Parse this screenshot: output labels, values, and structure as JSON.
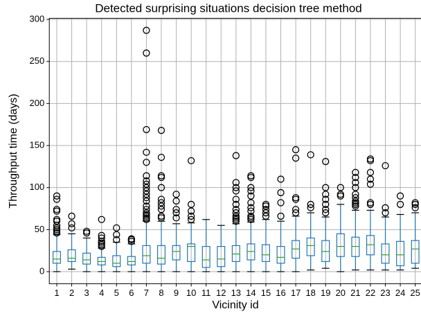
{
  "chart_data": {
    "type": "boxplot",
    "title": "Detected surprising situations decision tree method",
    "xlabel": "Vicinity id",
    "ylabel": "Throughput time (days)",
    "categories": [
      "1",
      "2",
      "3",
      "4",
      "5",
      "6",
      "7",
      "8",
      "9",
      "10",
      "11",
      "12",
      "13",
      "14",
      "15",
      "16",
      "17",
      "18",
      "19",
      "20",
      "21",
      "22",
      "23",
      "24",
      "25"
    ],
    "box_color": "#1f77b4",
    "median_color": "#2ca02c",
    "flier_color": "#000000",
    "grid": true,
    "ylim": [
      -14.35,
      301.35
    ],
    "yticks": [
      0,
      50,
      100,
      150,
      200,
      250,
      300
    ],
    "boxes": [
      {
        "whislo": 0,
        "q1": 10,
        "med": 15,
        "q3": 24,
        "whishi": 44,
        "fliers": [
          46,
          48,
          50,
          52,
          55,
          60,
          62,
          72,
          74,
          86,
          90
        ]
      },
      {
        "whislo": 3,
        "q1": 12,
        "med": 16,
        "q3": 26,
        "whishi": 45,
        "fliers": [
          52,
          57,
          66
        ]
      },
      {
        "whislo": 0,
        "q1": 9,
        "med": 14,
        "q3": 22,
        "whishi": 40,
        "fliers": [
          46,
          48
        ]
      },
      {
        "whislo": 0,
        "q1": 8,
        "med": 12,
        "q3": 17,
        "whishi": 28,
        "fliers": [
          30,
          32,
          34,
          36,
          40,
          43,
          62
        ]
      },
      {
        "whislo": 0,
        "q1": 6,
        "med": 10,
        "q3": 19,
        "whishi": 35,
        "fliers": [
          38,
          44,
          52
        ]
      },
      {
        "whislo": 0,
        "q1": 8,
        "med": 12,
        "q3": 18,
        "whishi": 33,
        "fliers": [
          36,
          38,
          39
        ]
      },
      {
        "whislo": 0,
        "q1": 10,
        "med": 19,
        "q3": 31,
        "whishi": 60,
        "fliers": [
          62,
          64,
          66,
          68,
          70,
          74,
          78,
          84,
          88,
          92,
          96,
          100,
          104,
          108,
          114,
          130,
          142,
          169,
          260,
          287
        ]
      },
      {
        "whislo": 0,
        "q1": 9,
        "med": 16,
        "q3": 31,
        "whishi": 60,
        "fliers": [
          64,
          66,
          74,
          78,
          82,
          86,
          100,
          112,
          114,
          136,
          168
        ]
      },
      {
        "whislo": 0,
        "q1": 14,
        "med": 24,
        "q3": 31,
        "whishi": 57,
        "fliers": [
          64,
          70,
          74,
          84,
          92
        ]
      },
      {
        "whislo": 0,
        "q1": 12,
        "med": 30,
        "q3": 33,
        "whishi": 58,
        "fliers": [
          62,
          66,
          72,
          80,
          132
        ]
      },
      {
        "whislo": 0,
        "q1": 5,
        "med": 14,
        "q3": 30,
        "whishi": 62,
        "fliers": []
      },
      {
        "whislo": 0,
        "q1": 6,
        "med": 15,
        "q3": 30,
        "whishi": 55,
        "fliers": []
      },
      {
        "whislo": 0,
        "q1": 12,
        "med": 21,
        "q3": 31,
        "whishi": 57,
        "fliers": [
          60,
          62,
          64,
          66,
          70,
          74,
          80,
          86,
          96,
          100,
          106,
          138
        ]
      },
      {
        "whislo": 0,
        "q1": 14,
        "med": 24,
        "q3": 33,
        "whishi": 59,
        "fliers": [
          62,
          64,
          66,
          72,
          76,
          82,
          90,
          96,
          100,
          112,
          114
        ]
      },
      {
        "whislo": 0,
        "q1": 12,
        "med": 20,
        "q3": 32,
        "whishi": 62,
        "fliers": [
          66,
          70,
          74,
          78,
          80
        ]
      },
      {
        "whislo": 0,
        "q1": 10,
        "med": 17,
        "q3": 30,
        "whishi": 60,
        "fliers": [
          66,
          82,
          94,
          110
        ]
      },
      {
        "whislo": 0,
        "q1": 16,
        "med": 27,
        "q3": 37,
        "whishi": 66,
        "fliers": [
          70,
          74,
          86,
          88,
          135,
          145
        ]
      },
      {
        "whislo": 2,
        "q1": 19,
        "med": 31,
        "q3": 40,
        "whishi": 70,
        "fliers": [
          76,
          80,
          139
        ]
      },
      {
        "whislo": 4,
        "q1": 12,
        "med": 24,
        "q3": 37,
        "whishi": 65,
        "fliers": [
          70,
          74,
          80,
          86,
          92,
          100,
          131
        ]
      },
      {
        "whislo": 0,
        "q1": 18,
        "med": 30,
        "q3": 45,
        "whishi": 80,
        "fliers": [
          90,
          92,
          100
        ]
      },
      {
        "whislo": 2,
        "q1": 18,
        "med": 30,
        "q3": 41,
        "whishi": 73,
        "fliers": [
          78,
          80,
          82,
          84,
          88,
          92,
          100,
          106,
          112,
          118
        ]
      },
      {
        "whislo": 2,
        "q1": 20,
        "med": 32,
        "q3": 43,
        "whishi": 73,
        "fliers": [
          80,
          82,
          104,
          110,
          118,
          132,
          134
        ]
      },
      {
        "whislo": 2,
        "q1": 10,
        "med": 20,
        "q3": 33,
        "whishi": 65,
        "fliers": [
          70,
          76,
          126
        ]
      },
      {
        "whislo": 2,
        "q1": 7,
        "med": 20,
        "q3": 36,
        "whishi": 68,
        "fliers": [
          80,
          90
        ]
      },
      {
        "whislo": 4,
        "q1": 10,
        "med": 27,
        "q3": 37,
        "whishi": 70,
        "fliers": [
          76,
          80,
          82
        ]
      }
    ]
  }
}
